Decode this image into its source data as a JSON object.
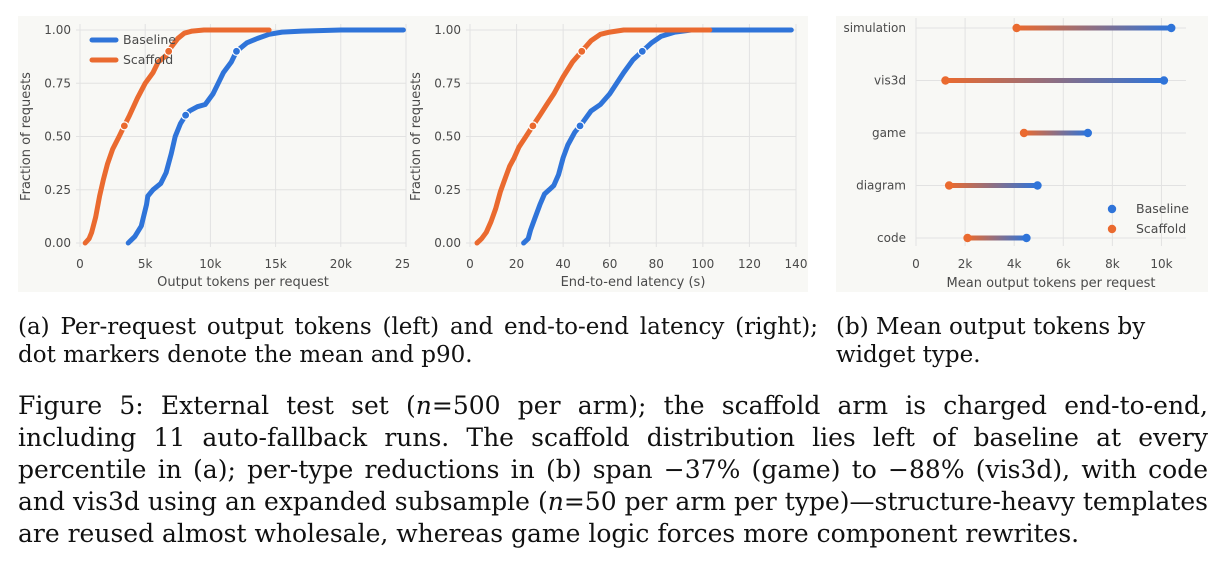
{
  "colors": {
    "baseline": "#2f74d9",
    "scaffold": "#ea6a2f",
    "grid": "#e2e2e2",
    "panel_bg": "#f8f8f5",
    "axis_text": "#555555"
  },
  "chart_data": [
    {
      "id": "tokens_ecdf",
      "type": "line",
      "title": "",
      "xlabel": "Output tokens per request",
      "ylabel": "Fraction of requests",
      "xlim": [
        0,
        25000
      ],
      "ylim": [
        0,
        1.0
      ],
      "xticks": [
        0,
        5000,
        10000,
        15000,
        20000,
        25000
      ],
      "xtick_labels": [
        "0",
        "5k",
        "10k",
        "15k",
        "20k",
        "25k"
      ],
      "yticks": [
        0,
        0.25,
        0.5,
        0.75,
        1.0
      ],
      "ytick_labels": [
        "0.00",
        "0.25",
        "0.50",
        "0.75",
        "1.00"
      ],
      "grid": true,
      "legend": "top-left",
      "legend_entries": [
        "Baseline",
        "Scaffold"
      ],
      "series": [
        {
          "name": "Baseline",
          "color_key": "baseline",
          "marker_at": [
            0.6,
            0.9
          ],
          "x": [
            3700,
            4200,
            4700,
            4900,
            5100,
            5200,
            5600,
            6200,
            6600,
            7000,
            7300,
            7700,
            8100,
            8400,
            9000,
            9600,
            10200,
            10600,
            11000,
            11600,
            12000,
            12800,
            13600,
            14500,
            15500,
            17000,
            20000,
            24800
          ],
          "y": [
            0.0,
            0.03,
            0.08,
            0.13,
            0.18,
            0.22,
            0.25,
            0.28,
            0.33,
            0.42,
            0.5,
            0.56,
            0.6,
            0.62,
            0.64,
            0.65,
            0.7,
            0.75,
            0.8,
            0.85,
            0.9,
            0.94,
            0.96,
            0.98,
            0.99,
            0.995,
            1.0,
            1.0
          ]
        },
        {
          "name": "Scaffold",
          "color_key": "scaffold",
          "marker_at": [
            0.55,
            0.9
          ],
          "x": [
            400,
            700,
            900,
            1200,
            1500,
            1800,
            2100,
            2500,
            3000,
            3400,
            3800,
            4400,
            5000,
            5600,
            6000,
            6600,
            7000,
            7500,
            8000,
            8600,
            9500,
            11000,
            14500
          ],
          "y": [
            0.0,
            0.02,
            0.05,
            0.12,
            0.22,
            0.3,
            0.37,
            0.44,
            0.5,
            0.55,
            0.6,
            0.68,
            0.75,
            0.8,
            0.85,
            0.88,
            0.92,
            0.96,
            0.985,
            0.995,
            1.0,
            1.0,
            1.0
          ]
        }
      ]
    },
    {
      "id": "latency_ecdf",
      "type": "line",
      "title": "",
      "xlabel": "End-to-end latency (s)",
      "ylabel": "Fraction of requests",
      "xlim": [
        0,
        140
      ],
      "ylim": [
        0,
        1.0
      ],
      "xticks": [
        0,
        20,
        40,
        60,
        80,
        100,
        120,
        140
      ],
      "xtick_labels": [
        "0",
        "20",
        "40",
        "60",
        "80",
        "100",
        "120",
        "140"
      ],
      "yticks": [
        0,
        0.25,
        0.5,
        0.75,
        1.0
      ],
      "ytick_labels": [
        "0.00",
        "0.25",
        "0.50",
        "0.75",
        "1.00"
      ],
      "grid": true,
      "series": [
        {
          "name": "Baseline",
          "color_key": "baseline",
          "marker_at": [
            0.55,
            0.9
          ],
          "x": [
            23,
            25,
            26,
            28,
            30,
            32,
            34,
            36,
            38,
            40,
            42,
            45,
            48,
            52,
            56,
            60,
            63,
            66,
            70,
            74,
            78,
            82,
            88,
            95,
            105,
            120,
            138
          ],
          "y": [
            0.0,
            0.02,
            0.06,
            0.12,
            0.18,
            0.23,
            0.25,
            0.27,
            0.32,
            0.4,
            0.46,
            0.52,
            0.56,
            0.62,
            0.65,
            0.7,
            0.75,
            0.8,
            0.86,
            0.9,
            0.94,
            0.97,
            0.99,
            1.0,
            1.0,
            1.0,
            1.0
          ]
        },
        {
          "name": "Scaffold",
          "color_key": "scaffold",
          "marker_at": [
            0.55,
            0.9
          ],
          "x": [
            3,
            5,
            7,
            9,
            11,
            13,
            15,
            17,
            19,
            21,
            24,
            27,
            30,
            33,
            36,
            40,
            44,
            48,
            52,
            56,
            60,
            66,
            75,
            90,
            103
          ],
          "y": [
            0.0,
            0.02,
            0.05,
            0.1,
            0.16,
            0.24,
            0.3,
            0.36,
            0.4,
            0.45,
            0.5,
            0.55,
            0.6,
            0.65,
            0.7,
            0.78,
            0.85,
            0.9,
            0.95,
            0.98,
            0.99,
            1.0,
            1.0,
            1.0,
            1.0
          ]
        }
      ]
    },
    {
      "id": "widget_dumbbell",
      "type": "scatter",
      "title": "",
      "xlabel": "Mean output tokens per request",
      "ylabel": "",
      "xlim": [
        0,
        11000
      ],
      "xticks": [
        0,
        2000,
        4000,
        6000,
        8000,
        10000
      ],
      "xtick_labels": [
        "0",
        "2k",
        "4k",
        "6k",
        "8k",
        "10k"
      ],
      "grid": true,
      "legend": "bottom-right",
      "legend_entries": [
        "Baseline",
        "Scaffold"
      ],
      "categories": [
        "simulation",
        "vis3d",
        "game",
        "diagram",
        "code"
      ],
      "series": [
        {
          "name": "Baseline",
          "color_key": "baseline",
          "values": [
            10400,
            10100,
            7000,
            4950,
            4500
          ]
        },
        {
          "name": "Scaffold",
          "color_key": "scaffold",
          "values": [
            4100,
            1200,
            4400,
            1350,
            2100
          ]
        }
      ]
    }
  ],
  "subcaptions": {
    "a": "(a) Per-request output tokens (left) and end-to-end latency (right); dot markers denote the mean and p90.",
    "b": "(b) Mean output tokens by widget type."
  },
  "caption": {
    "label": "Figure 5:",
    "t1": "External test set (",
    "n1": "n",
    "eq1": "=500 per arm); the scaffold arm is charged end-to-end, including 11 auto-fallback runs. The scaffold distribution lies left of baseline at every percentile in (a); per-type reductions in (b) span −37% (game) to −88% (vis3d), with code and vis3d using an expanded subsample (",
    "n2": "n",
    "eq2": "=50 per arm per type)—structure-heavy templates are reused almost wholesale, whereas game logic forces more component rewrites."
  }
}
